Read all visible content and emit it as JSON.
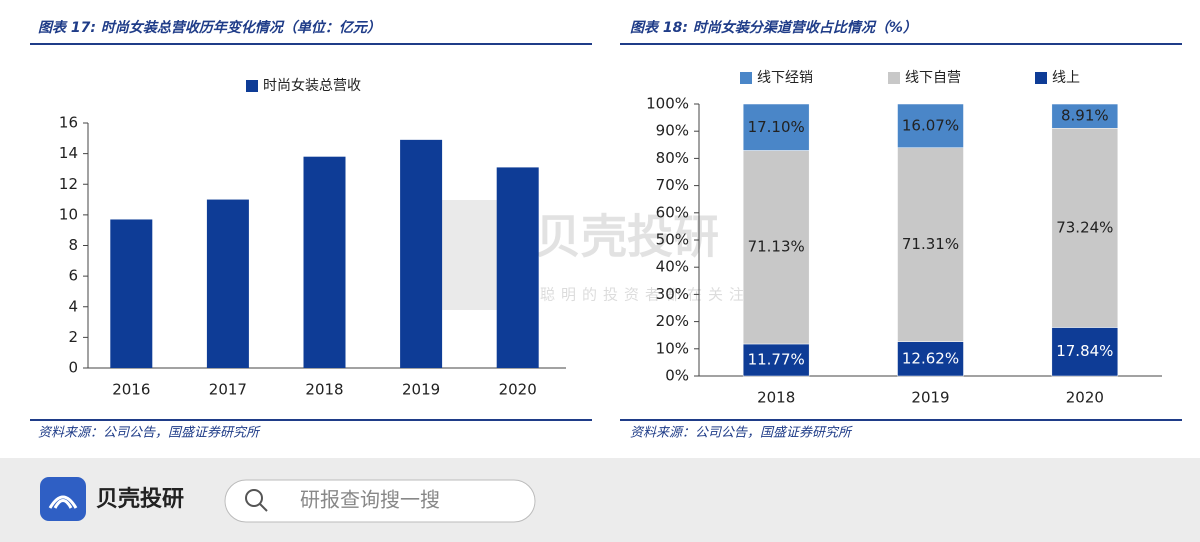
{
  "chart_data": [
    {
      "type": "bar",
      "title": "图表 17: 时尚女装总营收历年变化情况（单位：亿元）",
      "source": "资料来源：公司公告，国盛证券研究所",
      "categories": [
        "2016",
        "2017",
        "2018",
        "2019",
        "2020"
      ],
      "series": [
        {
          "name": "时尚女装总营收",
          "color": "#0e3c96",
          "values": [
            9.7,
            11.0,
            13.8,
            14.9,
            13.1
          ]
        }
      ],
      "ylim": [
        0,
        16
      ],
      "yticks": [
        0,
        2,
        4,
        6,
        8,
        10,
        12,
        14,
        16
      ],
      "grid": false,
      "legend": "top"
    },
    {
      "type": "stacked_bar",
      "title": "图表 18: 时尚女装分渠道营收占比情况（%）",
      "source": "资料来源：公司公告，国盛证券研究所",
      "categories": [
        "2018",
        "2019",
        "2020"
      ],
      "series": [
        {
          "name": "线下经销",
          "color": "#4a86c8",
          "values": [
            17.1,
            16.07,
            8.91
          ],
          "value_labels": [
            "17.10%",
            "16.07%",
            "8.91%"
          ]
        },
        {
          "name": "线下自营",
          "color": "#c8c8c8",
          "values": [
            71.13,
            71.31,
            73.24
          ],
          "value_labels": [
            "71.13%",
            "71.31%",
            "73.24%"
          ]
        },
        {
          "name": "线上",
          "color": "#0e3c96",
          "values": [
            11.77,
            12.62,
            17.84
          ],
          "value_labels": [
            "11.77%",
            "12.62%",
            "17.84%"
          ]
        }
      ],
      "ylim": [
        0,
        100
      ],
      "yticks": [
        {
          "value": 0,
          "label": "0%"
        },
        {
          "value": 10,
          "label": "10%"
        },
        {
          "value": 20,
          "label": "20%"
        },
        {
          "value": 30,
          "label": "30%"
        },
        {
          "value": 40,
          "label": "40%"
        },
        {
          "value": 50,
          "label": "50%"
        },
        {
          "value": 60,
          "label": "60%"
        },
        {
          "value": 70,
          "label": "70%"
        },
        {
          "value": 80,
          "label": "80%"
        },
        {
          "value": 90,
          "label": "90%"
        },
        {
          "value": 100,
          "label": "100%"
        }
      ],
      "grid": false,
      "legend": "top"
    }
  ],
  "watermark": {
    "title": "贝壳投研",
    "subtitle": "聪明的投资者都在关注"
  },
  "footer": {
    "brand": "贝壳投研",
    "search_placeholder": "研报查询搜一搜"
  }
}
